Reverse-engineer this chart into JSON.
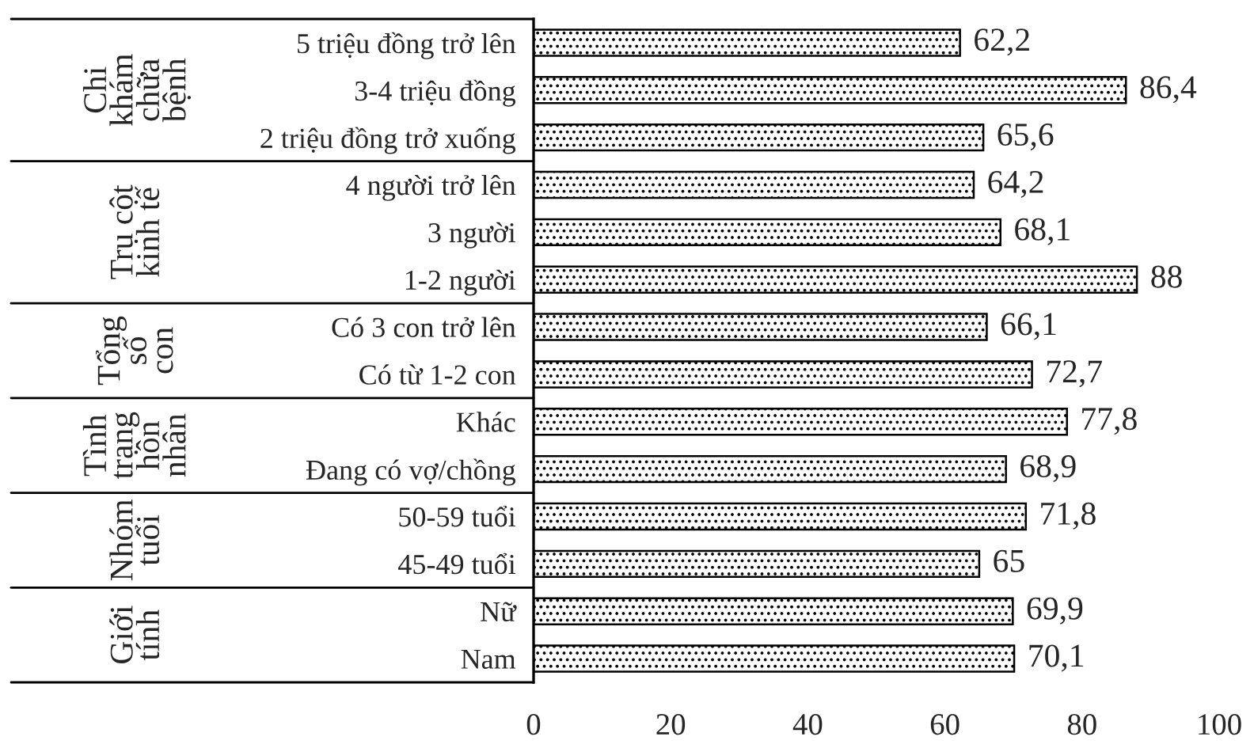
{
  "chart_data": {
    "type": "bar",
    "orientation": "horizontal",
    "categories": [
      "5 triệu đồng trở lên",
      "3-4 triệu đồng",
      "2 triệu đồng trở xuống",
      "4 người trở lên",
      "3 người",
      "1-2 người",
      "Có 3 con trở lên",
      "Có từ 1-2 con",
      "Khác",
      "Đang có vợ/chồng",
      "50-59 tuổi",
      "45-49 tuổi",
      "Nữ",
      "Nam"
    ],
    "values": [
      62.2,
      86.4,
      65.6,
      64.2,
      68.1,
      88,
      66.1,
      72.7,
      77.8,
      68.9,
      71.8,
      65,
      69.9,
      70.1
    ],
    "value_labels": [
      "62,2",
      "86,4",
      "65,6",
      "64,2",
      "68,1",
      "88",
      "66,1",
      "72,7",
      "77,8",
      "68,9",
      "71,8",
      "65",
      "69,9",
      "70,1"
    ],
    "color": "#000000",
    "xlim": [
      0,
      100
    ],
    "xticks": [
      0,
      20,
      40,
      60,
      80,
      100
    ],
    "grid": false,
    "legend": false,
    "annotations": [
      "Chi\nkhám\nchữa\nbệnh",
      "Trụ cột\nkinh tế",
      "Tổng\nsố\ncon",
      "Tình\ntrạng\nhôn\nnhân",
      "Nhóm\ntuổi",
      "Giới\ntính"
    ]
  }
}
